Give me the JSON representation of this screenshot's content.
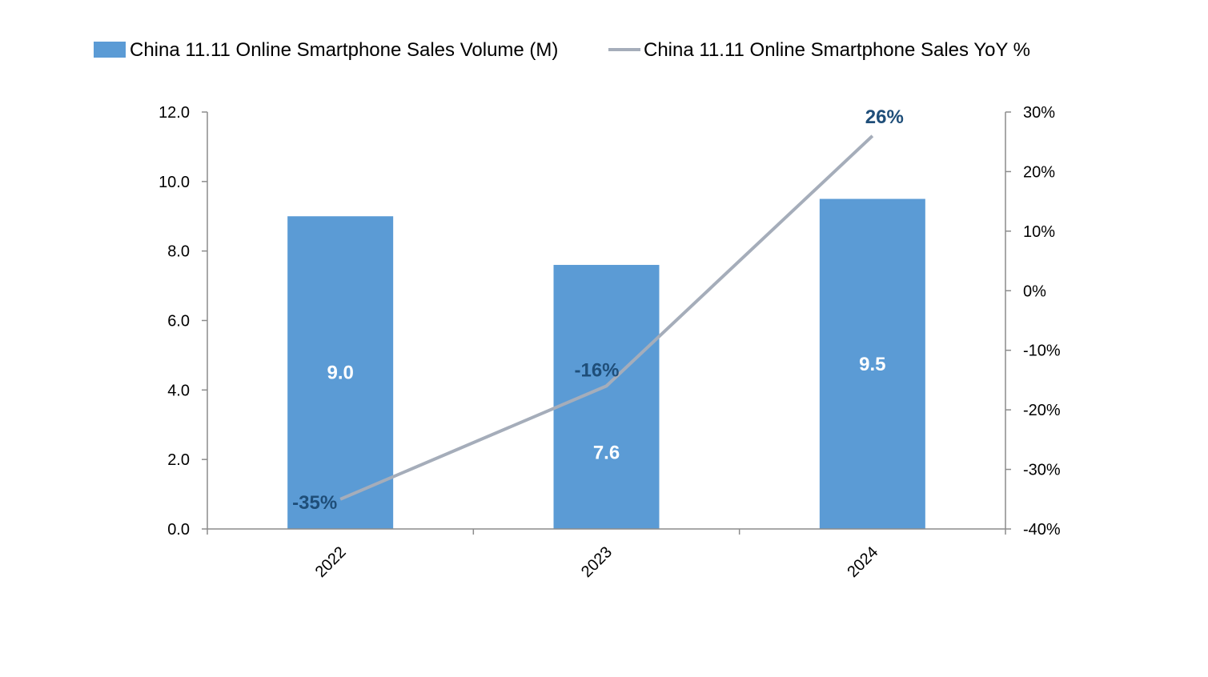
{
  "chart_data": {
    "type": "bar",
    "categories": [
      "2022",
      "2023",
      "2024"
    ],
    "series": [
      {
        "name": "China 11.11 Online Smartphone Sales Volume (M)",
        "type": "bar",
        "axis": "left",
        "values": [
          9.0,
          7.6,
          9.5
        ],
        "labels": [
          "9.0",
          "7.6",
          "9.5"
        ]
      },
      {
        "name": "China 11.11 Online Smartphone Sales YoY %",
        "type": "line",
        "axis": "right",
        "values": [
          -35,
          -16,
          26
        ],
        "labels": [
          "-35%",
          "-16%",
          "26%"
        ]
      }
    ],
    "y_left": {
      "range": [
        0,
        12
      ],
      "ticks": [
        "0.0",
        "2.0",
        "4.0",
        "6.0",
        "8.0",
        "10.0",
        "12.0"
      ]
    },
    "y_right": {
      "range": [
        -40,
        30
      ],
      "ticks": [
        "-40%",
        "-30%",
        "-20%",
        "-10%",
        "0%",
        "10%",
        "20%",
        "30%"
      ]
    },
    "title": "",
    "xlabel": "",
    "ylabel": "",
    "grid": false,
    "legend_position": "top",
    "colors": {
      "bar": "#5B9BD5",
      "line": "#A5ADBA",
      "line_label": "#1F4E79",
      "bar_label": "#FFFFFF"
    }
  }
}
